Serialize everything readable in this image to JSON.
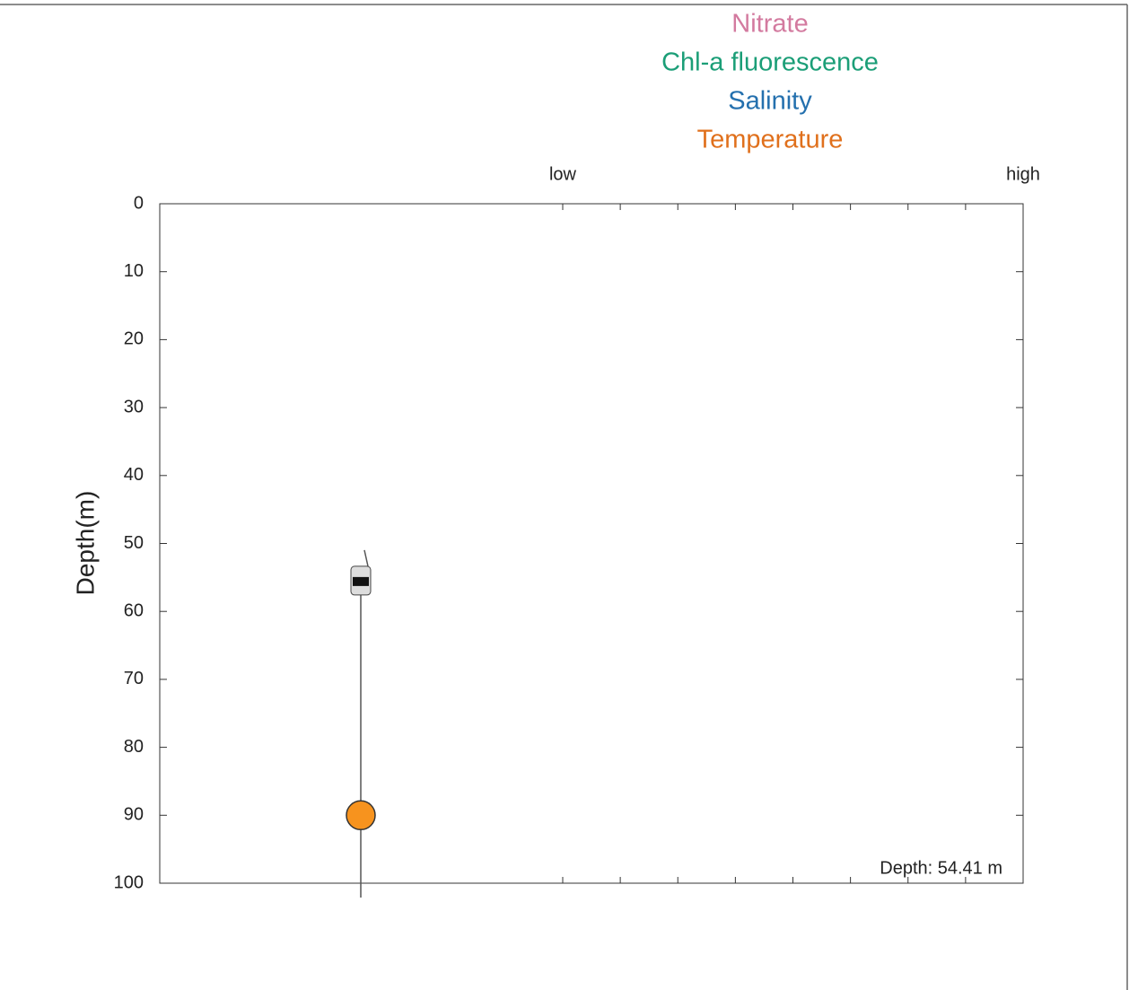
{
  "chart_data": {
    "type": "mooring",
    "legend": [
      {
        "name": "Nitrate",
        "color": "#d37a9f"
      },
      {
        "name": "Chl-a fluorescence",
        "color": "#1b9e77"
      },
      {
        "name": "Salinity",
        "color": "#2470ae"
      },
      {
        "name": "Temperature",
        "color": "#e0701c"
      }
    ],
    "x_low_label": "low",
    "x_high_label": "high",
    "ylabel": "Depth(m)",
    "ylim": [
      0,
      100
    ],
    "yticks": [
      0,
      10,
      20,
      30,
      40,
      50,
      60,
      70,
      80,
      90,
      100
    ],
    "float_depth": 54.41,
    "anchor_depth": 90,
    "anchor_color": "#f7931e",
    "annotation": "Depth: 54.41 m"
  }
}
